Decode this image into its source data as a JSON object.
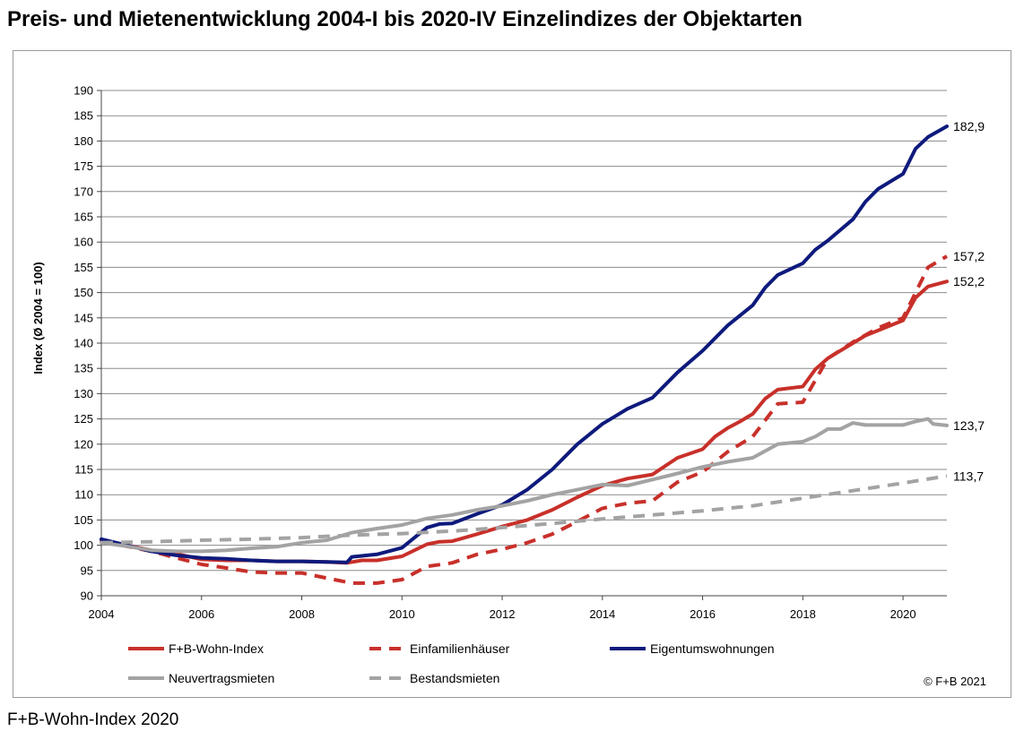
{
  "title": "Preis- und Mietenentwicklung 2004-I bis 2020-IV Einzelindizes der Objektarten",
  "caption": "F+B-Wohn-Index 2020",
  "copyright": "© F+B 2021",
  "chart_data": {
    "type": "line",
    "title": "Preis- und Mietenentwicklung 2004-I bis 2020-IV Einzelindizes der Objektarten",
    "xlabel": "",
    "ylabel": "Index (Ø 2004 = 100)",
    "xlim": [
      2004,
      2020.875
    ],
    "ylim": [
      90,
      190
    ],
    "x_ticks": [
      "2004",
      "2006",
      "2008",
      "2010",
      "2012",
      "2014",
      "2016",
      "2018",
      "2020"
    ],
    "y_ticks": [
      "90",
      "95",
      "100",
      "105",
      "110",
      "115",
      "120",
      "125",
      "130",
      "135",
      "140",
      "145",
      "150",
      "155",
      "160",
      "165",
      "170",
      "175",
      "180",
      "185",
      "190"
    ],
    "grid": "horizontal",
    "legend_position": "bottom",
    "series": [
      {
        "name": "F+B-Wohn-Index",
        "color": "#c8302a",
        "dash": "solid",
        "end_label": "152,2",
        "points": [
          [
            2004,
            101
          ],
          [
            2004.5,
            100
          ],
          [
            2005,
            99
          ],
          [
            2005.5,
            98.3
          ],
          [
            2006,
            97.2
          ],
          [
            2006.5,
            97
          ],
          [
            2007,
            97
          ],
          [
            2007.5,
            96.8
          ],
          [
            2008,
            96.8
          ],
          [
            2008.5,
            96.7
          ],
          [
            2008.9,
            96.5
          ],
          [
            2009.2,
            97
          ],
          [
            2009.5,
            97
          ],
          [
            2010,
            97.8
          ],
          [
            2010.25,
            99
          ],
          [
            2010.5,
            100.2
          ],
          [
            2010.75,
            100.7
          ],
          [
            2011,
            100.8
          ],
          [
            2011.5,
            102.2
          ],
          [
            2012,
            103.7
          ],
          [
            2012.5,
            105
          ],
          [
            2013,
            107
          ],
          [
            2013.5,
            109.5
          ],
          [
            2014,
            111.8
          ],
          [
            2014.5,
            113.2
          ],
          [
            2015,
            114
          ],
          [
            2015.5,
            117.3
          ],
          [
            2016,
            119
          ],
          [
            2016.25,
            121.5
          ],
          [
            2016.5,
            123.2
          ],
          [
            2016.75,
            124.5
          ],
          [
            2017,
            126
          ],
          [
            2017.25,
            129
          ],
          [
            2017.5,
            130.8
          ],
          [
            2018,
            131.4
          ],
          [
            2018.25,
            134.8
          ],
          [
            2018.5,
            137
          ],
          [
            2019,
            140
          ],
          [
            2019.25,
            141.5
          ],
          [
            2019.5,
            142.5
          ],
          [
            2020,
            144.5
          ],
          [
            2020.25,
            149
          ],
          [
            2020.5,
            151.2
          ],
          [
            2020.875,
            152.2
          ]
        ]
      },
      {
        "name": "Einfamilienhäuser",
        "color": "#c8302a",
        "dash": "dashed",
        "end_label": "157,2",
        "points": [
          [
            2004,
            101
          ],
          [
            2004.5,
            99.8
          ],
          [
            2005,
            98.8
          ],
          [
            2005.5,
            97.5
          ],
          [
            2006,
            96.2
          ],
          [
            2006.5,
            95.5
          ],
          [
            2007,
            94.7
          ],
          [
            2007.5,
            94.5
          ],
          [
            2008,
            94.5
          ],
          [
            2008.5,
            93.5
          ],
          [
            2009,
            92.5
          ],
          [
            2009.5,
            92.5
          ],
          [
            2010,
            93.2
          ],
          [
            2010.5,
            95.8
          ],
          [
            2011,
            96.5
          ],
          [
            2011.5,
            98.2
          ],
          [
            2012,
            99.2
          ],
          [
            2012.5,
            100.5
          ],
          [
            2013,
            102.2
          ],
          [
            2013.5,
            104.7
          ],
          [
            2014,
            107.3
          ],
          [
            2014.5,
            108.3
          ],
          [
            2015,
            108.8
          ],
          [
            2015.5,
            112.5
          ],
          [
            2016,
            114.5
          ],
          [
            2016.5,
            118.5
          ],
          [
            2017,
            121.5
          ],
          [
            2017.5,
            128
          ],
          [
            2018,
            128.3
          ],
          [
            2018.5,
            137
          ],
          [
            2019,
            140.2
          ],
          [
            2019.5,
            143
          ],
          [
            2020,
            145
          ],
          [
            2020.25,
            150
          ],
          [
            2020.5,
            155
          ],
          [
            2020.875,
            157.2
          ]
        ]
      },
      {
        "name": "Eigentumswohnungen",
        "color": "#0e1a7c",
        "dash": "solid",
        "end_label": "182,9",
        "points": [
          [
            2004,
            101.2
          ],
          [
            2004.5,
            100
          ],
          [
            2005,
            98.8
          ],
          [
            2005.5,
            98
          ],
          [
            2006,
            97.5
          ],
          [
            2006.5,
            97.3
          ],
          [
            2007,
            97
          ],
          [
            2007.5,
            96.8
          ],
          [
            2008,
            96.8
          ],
          [
            2008.5,
            96.7
          ],
          [
            2008.9,
            96.6
          ],
          [
            2009,
            97.7
          ],
          [
            2009.5,
            98.2
          ],
          [
            2010,
            99.5
          ],
          [
            2010.25,
            101.5
          ],
          [
            2010.5,
            103.5
          ],
          [
            2010.75,
            104.2
          ],
          [
            2011,
            104.3
          ],
          [
            2011.5,
            106.2
          ],
          [
            2012,
            108
          ],
          [
            2012.5,
            111
          ],
          [
            2013,
            115
          ],
          [
            2013.5,
            120
          ],
          [
            2014,
            124
          ],
          [
            2014.25,
            125.5
          ],
          [
            2014.5,
            127
          ],
          [
            2015,
            129.2
          ],
          [
            2015.5,
            134.2
          ],
          [
            2016,
            138.5
          ],
          [
            2016.5,
            143.5
          ],
          [
            2017,
            147.5
          ],
          [
            2017.25,
            151
          ],
          [
            2017.5,
            153.5
          ],
          [
            2018,
            155.8
          ],
          [
            2018.25,
            158.5
          ],
          [
            2018.5,
            160.3
          ],
          [
            2019,
            164.5
          ],
          [
            2019.25,
            168
          ],
          [
            2019.5,
            170.5
          ],
          [
            2020,
            173.5
          ],
          [
            2020.25,
            178.5
          ],
          [
            2020.5,
            180.8
          ],
          [
            2020.875,
            182.9
          ]
        ]
      },
      {
        "name": "Neuvertragsmieten",
        "color": "#a3a3a3",
        "dash": "solid",
        "end_label": "123,7",
        "points": [
          [
            2004,
            100.5
          ],
          [
            2004.5,
            99.8
          ],
          [
            2005,
            99
          ],
          [
            2005.5,
            98.8
          ],
          [
            2006,
            98.8
          ],
          [
            2006.5,
            99
          ],
          [
            2007,
            99.4
          ],
          [
            2007.5,
            99.7
          ],
          [
            2008,
            100.5
          ],
          [
            2008.5,
            101
          ],
          [
            2009,
            102.5
          ],
          [
            2009.5,
            103.3
          ],
          [
            2010,
            104
          ],
          [
            2010.5,
            105.3
          ],
          [
            2011,
            106
          ],
          [
            2011.5,
            107
          ],
          [
            2012,
            107.8
          ],
          [
            2012.5,
            108.8
          ],
          [
            2013,
            110
          ],
          [
            2013.5,
            111
          ],
          [
            2014,
            112
          ],
          [
            2014.5,
            111.8
          ],
          [
            2015,
            113
          ],
          [
            2015.5,
            114.2
          ],
          [
            2016,
            115.5
          ],
          [
            2016.5,
            116.5
          ],
          [
            2017,
            117.3
          ],
          [
            2017.5,
            120
          ],
          [
            2018,
            120.5
          ],
          [
            2018.25,
            121.5
          ],
          [
            2018.5,
            123
          ],
          [
            2018.75,
            123
          ],
          [
            2019,
            124.2
          ],
          [
            2019.25,
            123.8
          ],
          [
            2019.5,
            123.8
          ],
          [
            2020,
            123.8
          ],
          [
            2020.25,
            124.5
          ],
          [
            2020.5,
            125
          ],
          [
            2020.6,
            124
          ],
          [
            2020.875,
            123.7
          ]
        ]
      },
      {
        "name": "Bestandsmieten",
        "color": "#a3a3a3",
        "dash": "dashed",
        "end_label": "113,7",
        "points": [
          [
            2004,
            100.5
          ],
          [
            2005,
            100.7
          ],
          [
            2006,
            101
          ],
          [
            2007,
            101.2
          ],
          [
            2008,
            101.5
          ],
          [
            2009,
            102
          ],
          [
            2010,
            102.3
          ],
          [
            2011,
            102.8
          ],
          [
            2012,
            103.5
          ],
          [
            2013,
            104.3
          ],
          [
            2014,
            105.2
          ],
          [
            2015,
            106
          ],
          [
            2016,
            106.8
          ],
          [
            2017,
            107.8
          ],
          [
            2018,
            109.3
          ],
          [
            2019,
            110.8
          ],
          [
            2020,
            112.3
          ],
          [
            2020.875,
            113.7
          ]
        ]
      }
    ]
  }
}
